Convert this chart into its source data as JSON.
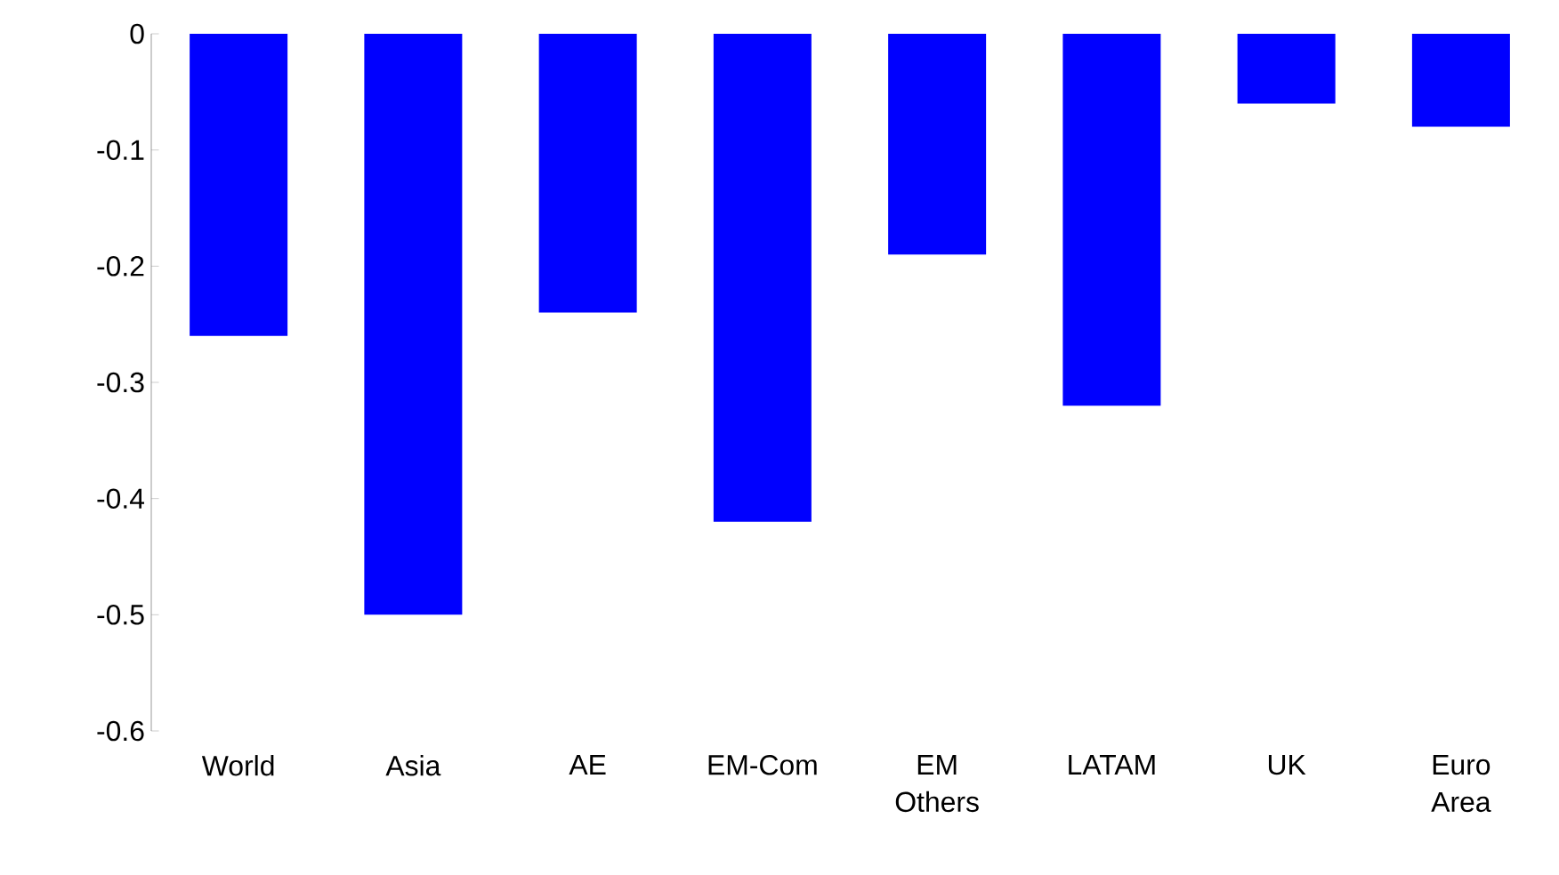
{
  "chart_data": {
    "type": "bar",
    "categories": [
      "World",
      "Asia",
      "AE",
      "EM-Com",
      "EM Others",
      "LATAM",
      "UK",
      "Euro Area"
    ],
    "values": [
      -0.26,
      -0.5,
      -0.24,
      -0.42,
      -0.19,
      -0.32,
      -0.06,
      -0.08
    ],
    "color": "#0000ff",
    "ylim": [
      -0.6,
      0
    ],
    "yticks": [
      -0.6,
      -0.5,
      -0.4,
      -0.3,
      -0.2,
      -0.1,
      0
    ],
    "grid": false
  }
}
